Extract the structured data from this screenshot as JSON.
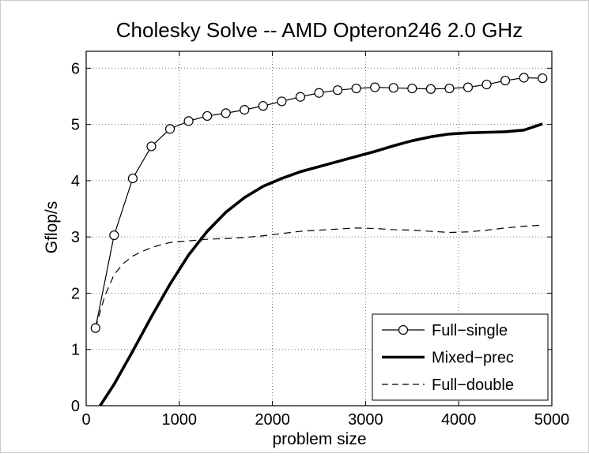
{
  "chart_data": {
    "type": "line",
    "title": "Cholesky Solve -- AMD Opteron246 2.0 GHz",
    "xlabel": "problem size",
    "ylabel": "Gflop/s",
    "xlim": [
      0,
      5000
    ],
    "ylim": [
      0,
      6.3
    ],
    "xticks": [
      0,
      1000,
      2000,
      3000,
      4000,
      5000
    ],
    "yticks": [
      0,
      1,
      2,
      3,
      4,
      5,
      6
    ],
    "xtick_labels": [
      "0",
      "1000",
      "2000",
      "3000",
      "4000",
      "5000"
    ],
    "ytick_labels": [
      "0",
      "1",
      "2",
      "3",
      "4",
      "5",
      "6"
    ],
    "grid": true,
    "legend_position": "bottom-right",
    "series": [
      {
        "name": "Full−single",
        "style": "solid-thin-circle",
        "color": "#000000",
        "x": [
          100,
          300,
          500,
          700,
          900,
          1100,
          1300,
          1500,
          1700,
          1900,
          2100,
          2300,
          2500,
          2700,
          2900,
          3100,
          3300,
          3500,
          3700,
          3900,
          4100,
          4300,
          4500,
          4700,
          4900
        ],
        "y": [
          1.38,
          3.03,
          4.04,
          4.61,
          4.92,
          5.06,
          5.15,
          5.2,
          5.26,
          5.33,
          5.41,
          5.49,
          5.56,
          5.61,
          5.64,
          5.66,
          5.65,
          5.64,
          5.63,
          5.64,
          5.66,
          5.71,
          5.78,
          5.83,
          5.82
        ]
      },
      {
        "name": "Mixed−prec",
        "style": "solid-thick",
        "color": "#000000",
        "x": [
          150,
          300,
          500,
          700,
          900,
          1100,
          1300,
          1500,
          1700,
          1900,
          2100,
          2300,
          2500,
          2700,
          2900,
          3100,
          3300,
          3500,
          3700,
          3900,
          4100,
          4300,
          4500,
          4700,
          4900
        ],
        "y": [
          0.0,
          0.38,
          0.97,
          1.58,
          2.16,
          2.68,
          3.1,
          3.44,
          3.7,
          3.9,
          4.04,
          4.16,
          4.25,
          4.34,
          4.43,
          4.52,
          4.62,
          4.71,
          4.78,
          4.83,
          4.85,
          4.86,
          4.87,
          4.9,
          5.01
        ]
      },
      {
        "name": "Full−double",
        "style": "dashed-thin",
        "color": "#000000",
        "x": [
          100,
          200,
          300,
          400,
          500,
          600,
          700,
          800,
          900,
          1100,
          1300,
          1500,
          1700,
          1900,
          2100,
          2300,
          2500,
          2700,
          2900,
          3100,
          3300,
          3500,
          3700,
          3900,
          4100,
          4300,
          4500,
          4700,
          4900
        ],
        "y": [
          1.38,
          1.95,
          2.33,
          2.53,
          2.66,
          2.74,
          2.81,
          2.86,
          2.9,
          2.93,
          2.96,
          2.97,
          2.99,
          3.02,
          3.06,
          3.1,
          3.12,
          3.14,
          3.16,
          3.15,
          3.13,
          3.12,
          3.1,
          3.08,
          3.09,
          3.12,
          3.16,
          3.19,
          3.21
        ]
      }
    ]
  }
}
